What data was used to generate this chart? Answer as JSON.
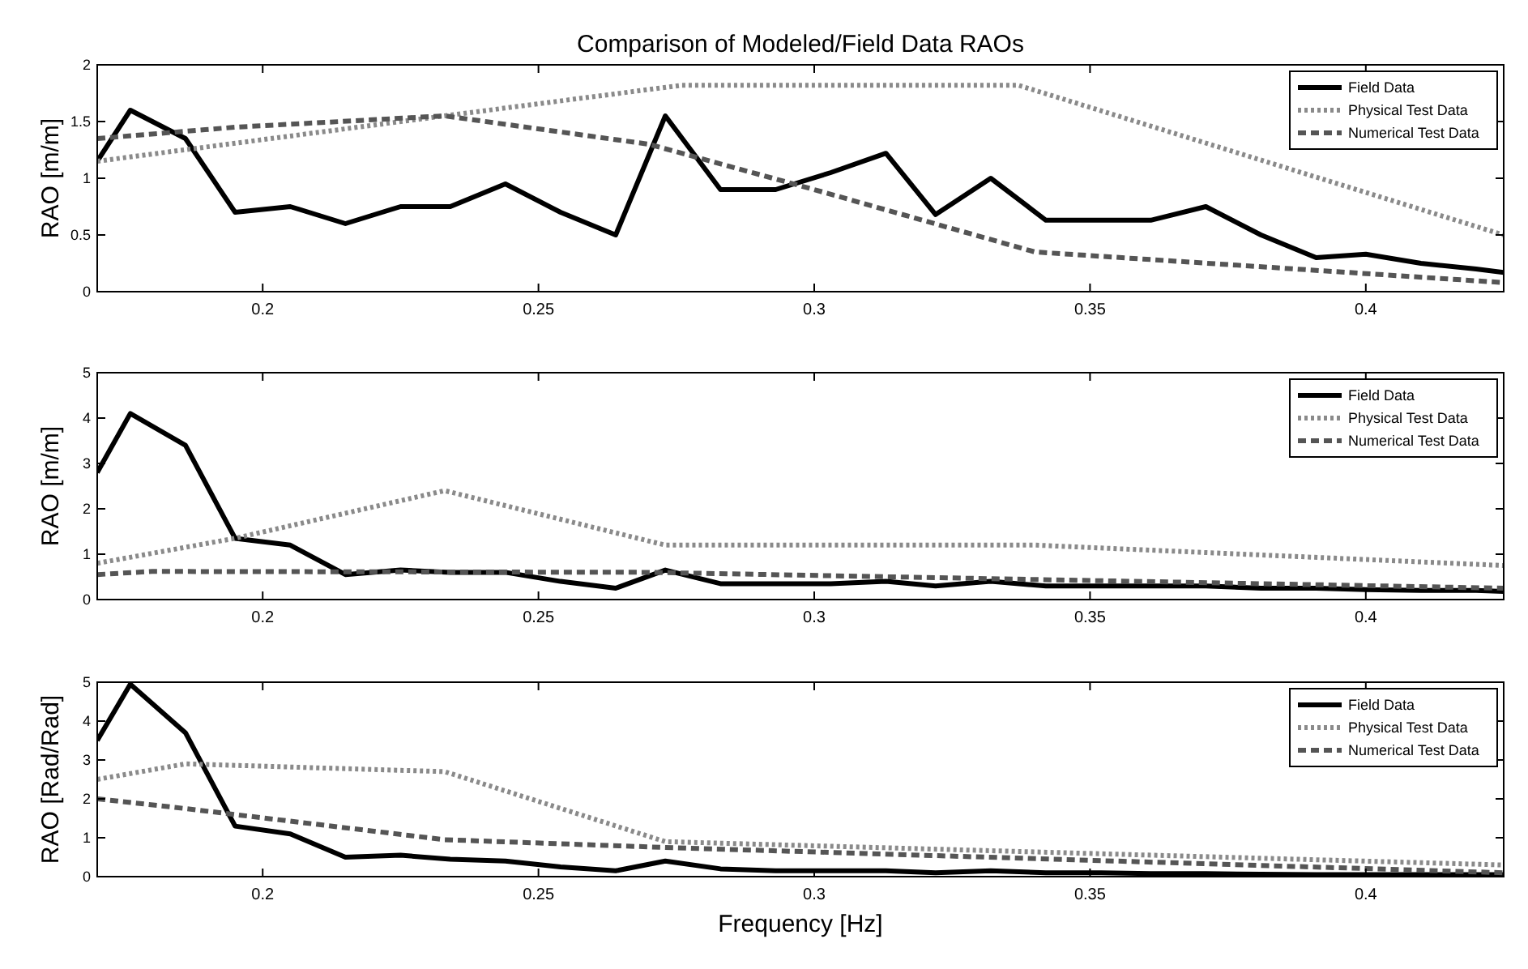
{
  "chart_data": [
    {
      "type": "line",
      "title": "Comparison of Modeled/Field Data RAOs",
      "ylabel": "RAO [m/m]",
      "xlim": [
        0.17,
        0.425
      ],
      "xticks": [
        0.2,
        0.25,
        0.3,
        0.35,
        0.4
      ],
      "ylim": [
        0,
        2
      ],
      "yticks": [
        0,
        0.5,
        1,
        1.5,
        2
      ],
      "legend": "top right",
      "grid": false,
      "series": [
        {
          "name": "Field Data",
          "color": "#000000",
          "line_style": "solid",
          "x": [
            0.17,
            0.176,
            0.186,
            0.195,
            0.205,
            0.215,
            0.225,
            0.234,
            0.244,
            0.254,
            0.264,
            0.273,
            0.283,
            0.293,
            0.303,
            0.313,
            0.322,
            0.332,
            0.342,
            0.352,
            0.361,
            0.371,
            0.381,
            0.391,
            0.4,
            0.41,
            0.42,
            0.425
          ],
          "values": [
            1.15,
            1.6,
            1.35,
            0.7,
            0.75,
            0.6,
            0.75,
            0.75,
            0.95,
            0.7,
            0.5,
            1.55,
            0.9,
            0.9,
            1.05,
            1.22,
            0.68,
            1.0,
            0.63,
            0.63,
            0.63,
            0.75,
            0.5,
            0.3,
            0.33,
            0.25,
            0.2,
            0.17
          ]
        },
        {
          "name": "Physical Test Data",
          "color": "#8a8a8a",
          "line_style": "dotted",
          "x": [
            0.17,
            0.233,
            0.276,
            0.337,
            0.425
          ],
          "values": [
            1.15,
            1.55,
            1.82,
            1.82,
            0.5
          ]
        },
        {
          "name": "Numerical Test Data",
          "color": "#555555",
          "line_style": "dashed",
          "x": [
            0.17,
            0.195,
            0.233,
            0.27,
            0.3,
            0.34,
            0.425
          ],
          "values": [
            1.35,
            1.45,
            1.55,
            1.3,
            0.9,
            0.35,
            0.08
          ]
        }
      ]
    },
    {
      "type": "line",
      "ylabel": "RAO [m/m]",
      "xlim": [
        0.17,
        0.425
      ],
      "xticks": [
        0.2,
        0.25,
        0.3,
        0.35,
        0.4
      ],
      "ylim": [
        0,
        5
      ],
      "yticks": [
        0,
        1,
        2,
        3,
        4,
        5
      ],
      "legend": "top right",
      "grid": false,
      "series": [
        {
          "name": "Field Data",
          "color": "#000000",
          "line_style": "solid",
          "x": [
            0.17,
            0.176,
            0.186,
            0.195,
            0.205,
            0.215,
            0.225,
            0.234,
            0.244,
            0.254,
            0.264,
            0.273,
            0.283,
            0.293,
            0.303,
            0.313,
            0.322,
            0.332,
            0.342,
            0.352,
            0.361,
            0.371,
            0.381,
            0.391,
            0.4,
            0.41,
            0.42,
            0.425
          ],
          "values": [
            2.8,
            4.1,
            3.4,
            1.35,
            1.2,
            0.55,
            0.65,
            0.6,
            0.6,
            0.4,
            0.25,
            0.65,
            0.35,
            0.35,
            0.35,
            0.4,
            0.3,
            0.4,
            0.3,
            0.3,
            0.3,
            0.3,
            0.25,
            0.25,
            0.22,
            0.2,
            0.2,
            0.18
          ]
        },
        {
          "name": "Physical Test Data",
          "color": "#8a8a8a",
          "line_style": "dotted",
          "x": [
            0.17,
            0.195,
            0.233,
            0.273,
            0.34,
            0.425
          ],
          "values": [
            0.8,
            1.35,
            2.4,
            1.2,
            1.2,
            0.75
          ]
        },
        {
          "name": "Numerical Test Data",
          "color": "#555555",
          "line_style": "dashed",
          "x": [
            0.17,
            0.18,
            0.27,
            0.425
          ],
          "values": [
            0.55,
            0.62,
            0.6,
            0.25
          ]
        }
      ]
    },
    {
      "type": "line",
      "ylabel": "RAO [Rad/Rad]",
      "xlabel": "Frequency [Hz]",
      "xlim": [
        0.17,
        0.425
      ],
      "xticks": [
        0.2,
        0.25,
        0.3,
        0.35,
        0.4
      ],
      "ylim": [
        0,
        5
      ],
      "yticks": [
        0,
        1,
        2,
        3,
        4,
        5
      ],
      "legend": "top right",
      "grid": false,
      "series": [
        {
          "name": "Field Data",
          "color": "#000000",
          "line_style": "solid",
          "x": [
            0.17,
            0.176,
            0.186,
            0.195,
            0.205,
            0.215,
            0.225,
            0.234,
            0.244,
            0.254,
            0.264,
            0.273,
            0.283,
            0.293,
            0.303,
            0.313,
            0.322,
            0.332,
            0.342,
            0.352,
            0.361,
            0.371,
            0.381,
            0.391,
            0.4,
            0.41,
            0.42,
            0.425
          ],
          "values": [
            3.5,
            4.95,
            3.7,
            1.3,
            1.1,
            0.5,
            0.55,
            0.45,
            0.4,
            0.25,
            0.15,
            0.4,
            0.2,
            0.15,
            0.15,
            0.15,
            0.1,
            0.15,
            0.1,
            0.1,
            0.08,
            0.08,
            0.06,
            0.05,
            0.05,
            0.05,
            0.05,
            0.05
          ]
        },
        {
          "name": "Physical Test Data",
          "color": "#8a8a8a",
          "line_style": "dotted",
          "x": [
            0.17,
            0.186,
            0.233,
            0.273,
            0.425
          ],
          "values": [
            2.5,
            2.9,
            2.7,
            0.9,
            0.3
          ]
        },
        {
          "name": "Numerical Test Data",
          "color": "#555555",
          "line_style": "dashed",
          "x": [
            0.17,
            0.186,
            0.233,
            0.273,
            0.425
          ],
          "values": [
            2.0,
            1.75,
            0.95,
            0.75,
            0.1
          ]
        }
      ]
    }
  ]
}
